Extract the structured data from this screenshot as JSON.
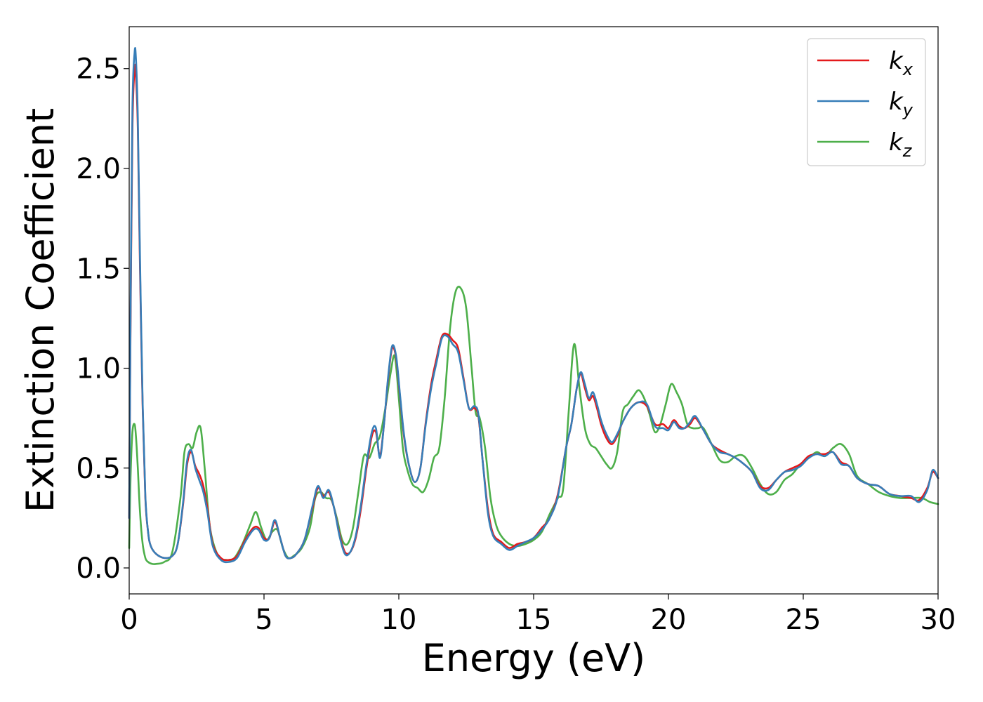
{
  "chart_data": {
    "type": "line",
    "title": "",
    "xlabel": "Energy (eV)",
    "ylabel": "Extinction Coefficient",
    "xlim": [
      0,
      30
    ],
    "ylim": [
      -0.13,
      2.71
    ],
    "xticks": [
      0,
      5,
      10,
      15,
      20,
      25,
      30
    ],
    "yticks": [
      0.0,
      0.5,
      1.0,
      1.5,
      2.0,
      2.5
    ],
    "xtick_labels": [
      "0",
      "5",
      "10",
      "15",
      "20",
      "25",
      "30"
    ],
    "ytick_labels": [
      "0.0",
      "0.5",
      "1.0",
      "1.5",
      "2.0",
      "2.5"
    ],
    "grid": false,
    "legend_position": "top-right",
    "series": [
      {
        "name": "k_x",
        "legend_base": "k",
        "legend_sub": "x",
        "color": "#e41a1c",
        "x": [
          0,
          0.05,
          0.12,
          0.2,
          0.25,
          0.32,
          0.4,
          0.5,
          0.6,
          0.7,
          0.8,
          1.0,
          1.3,
          1.6,
          1.8,
          2.0,
          2.15,
          2.3,
          2.45,
          2.6,
          2.75,
          2.9,
          3.1,
          3.4,
          3.7,
          4.0,
          4.3,
          4.6,
          4.8,
          5.0,
          5.2,
          5.4,
          5.6,
          5.8,
          6.0,
          6.2,
          6.5,
          6.8,
          7.0,
          7.2,
          7.4,
          7.6,
          7.8,
          8.0,
          8.2,
          8.4,
          8.6,
          8.8,
          9.0,
          9.15,
          9.3,
          9.45,
          9.6,
          9.75,
          9.9,
          10.05,
          10.2,
          10.4,
          10.6,
          10.8,
          11.0,
          11.2,
          11.4,
          11.6,
          11.8,
          12.0,
          12.2,
          12.4,
          12.6,
          12.8,
          12.95,
          13.1,
          13.3,
          13.5,
          13.8,
          14.1,
          14.4,
          14.7,
          15.0,
          15.3,
          15.6,
          15.9,
          16.2,
          16.4,
          16.6,
          16.75,
          16.9,
          17.05,
          17.2,
          17.35,
          17.5,
          17.7,
          17.9,
          18.1,
          18.3,
          18.6,
          18.9,
          19.2,
          19.5,
          19.8,
          20.0,
          20.2,
          20.4,
          20.6,
          20.8,
          21.0,
          21.3,
          21.6,
          21.9,
          22.2,
          22.5,
          22.8,
          23.1,
          23.4,
          23.7,
          24.0,
          24.3,
          24.6,
          24.9,
          25.2,
          25.5,
          25.8,
          26.1,
          26.4,
          26.7,
          27.0,
          27.4,
          27.8,
          28.2,
          28.6,
          29.0,
          29.3,
          29.6,
          29.8,
          30.0
        ],
        "y": [
          0.25,
          1.2,
          2.2,
          2.5,
          2.46,
          2.2,
          1.5,
          0.8,
          0.35,
          0.18,
          0.11,
          0.07,
          0.05,
          0.06,
          0.12,
          0.32,
          0.52,
          0.58,
          0.51,
          0.47,
          0.41,
          0.3,
          0.12,
          0.05,
          0.04,
          0.06,
          0.14,
          0.2,
          0.2,
          0.15,
          0.15,
          0.23,
          0.15,
          0.06,
          0.05,
          0.07,
          0.14,
          0.3,
          0.4,
          0.36,
          0.38,
          0.3,
          0.17,
          0.08,
          0.08,
          0.15,
          0.3,
          0.5,
          0.66,
          0.68,
          0.56,
          0.72,
          0.94,
          1.1,
          1.05,
          0.85,
          0.65,
          0.5,
          0.43,
          0.5,
          0.73,
          0.92,
          1.05,
          1.16,
          1.17,
          1.14,
          1.1,
          0.95,
          0.8,
          0.8,
          0.76,
          0.55,
          0.3,
          0.17,
          0.13,
          0.1,
          0.12,
          0.13,
          0.15,
          0.2,
          0.25,
          0.37,
          0.6,
          0.72,
          0.9,
          0.97,
          0.9,
          0.84,
          0.86,
          0.8,
          0.72,
          0.65,
          0.62,
          0.66,
          0.73,
          0.8,
          0.83,
          0.81,
          0.72,
          0.72,
          0.7,
          0.74,
          0.71,
          0.7,
          0.72,
          0.75,
          0.69,
          0.62,
          0.59,
          0.57,
          0.55,
          0.52,
          0.48,
          0.41,
          0.4,
          0.44,
          0.48,
          0.5,
          0.52,
          0.56,
          0.57,
          0.57,
          0.58,
          0.53,
          0.51,
          0.45,
          0.42,
          0.41,
          0.37,
          0.36,
          0.35,
          0.34,
          0.4,
          0.48,
          0.45
        ]
      },
      {
        "name": "k_y",
        "legend_base": "k",
        "legend_sub": "y",
        "color": "#377eb8",
        "x": [
          0,
          0.05,
          0.12,
          0.2,
          0.25,
          0.32,
          0.4,
          0.5,
          0.6,
          0.7,
          0.8,
          1.0,
          1.3,
          1.6,
          1.8,
          2.0,
          2.15,
          2.3,
          2.45,
          2.6,
          2.75,
          2.9,
          3.1,
          3.4,
          3.7,
          4.0,
          4.3,
          4.6,
          4.8,
          5.0,
          5.2,
          5.4,
          5.6,
          5.8,
          6.0,
          6.2,
          6.5,
          6.8,
          7.0,
          7.2,
          7.4,
          7.6,
          7.8,
          8.0,
          8.2,
          8.4,
          8.6,
          8.8,
          9.0,
          9.15,
          9.3,
          9.45,
          9.6,
          9.75,
          9.9,
          10.05,
          10.2,
          10.4,
          10.6,
          10.8,
          11.0,
          11.2,
          11.4,
          11.6,
          11.8,
          12.0,
          12.2,
          12.4,
          12.6,
          12.8,
          12.95,
          13.1,
          13.3,
          13.5,
          13.8,
          14.1,
          14.4,
          14.7,
          15.0,
          15.3,
          15.6,
          15.9,
          16.2,
          16.4,
          16.6,
          16.75,
          16.9,
          17.05,
          17.2,
          17.35,
          17.5,
          17.7,
          17.9,
          18.1,
          18.3,
          18.6,
          18.9,
          19.2,
          19.5,
          19.8,
          20.0,
          20.2,
          20.4,
          20.6,
          20.8,
          21.0,
          21.3,
          21.6,
          21.9,
          22.2,
          22.5,
          22.8,
          23.1,
          23.4,
          23.7,
          24.0,
          24.3,
          24.6,
          24.9,
          25.2,
          25.5,
          25.8,
          26.1,
          26.4,
          26.7,
          27.0,
          27.4,
          27.8,
          28.2,
          28.6,
          29.0,
          29.3,
          29.6,
          29.8,
          30.0
        ],
        "y": [
          0.25,
          1.25,
          2.3,
          2.58,
          2.55,
          2.25,
          1.55,
          0.82,
          0.36,
          0.18,
          0.11,
          0.07,
          0.05,
          0.06,
          0.12,
          0.33,
          0.54,
          0.59,
          0.5,
          0.44,
          0.38,
          0.28,
          0.11,
          0.04,
          0.03,
          0.05,
          0.13,
          0.19,
          0.19,
          0.14,
          0.15,
          0.24,
          0.15,
          0.06,
          0.05,
          0.07,
          0.14,
          0.31,
          0.41,
          0.35,
          0.39,
          0.3,
          0.16,
          0.07,
          0.08,
          0.16,
          0.32,
          0.52,
          0.68,
          0.7,
          0.55,
          0.72,
          0.95,
          1.11,
          1.06,
          0.86,
          0.66,
          0.5,
          0.43,
          0.5,
          0.72,
          0.9,
          1.03,
          1.15,
          1.16,
          1.12,
          1.08,
          0.94,
          0.8,
          0.81,
          0.77,
          0.55,
          0.28,
          0.16,
          0.12,
          0.09,
          0.11,
          0.13,
          0.15,
          0.19,
          0.25,
          0.36,
          0.6,
          0.72,
          0.9,
          0.98,
          0.92,
          0.85,
          0.88,
          0.82,
          0.74,
          0.67,
          0.63,
          0.67,
          0.73,
          0.8,
          0.83,
          0.82,
          0.71,
          0.7,
          0.69,
          0.73,
          0.7,
          0.7,
          0.73,
          0.76,
          0.69,
          0.62,
          0.58,
          0.57,
          0.55,
          0.52,
          0.48,
          0.4,
          0.39,
          0.44,
          0.48,
          0.49,
          0.51,
          0.55,
          0.57,
          0.56,
          0.58,
          0.52,
          0.51,
          0.45,
          0.42,
          0.41,
          0.37,
          0.36,
          0.36,
          0.33,
          0.39,
          0.49,
          0.45
        ]
      },
      {
        "name": "k_z",
        "legend_base": "k",
        "legend_sub": "z",
        "color": "#4daf4a",
        "x": [
          0,
          0.05,
          0.12,
          0.2,
          0.25,
          0.32,
          0.4,
          0.5,
          0.6,
          0.7,
          0.85,
          1.0,
          1.3,
          1.6,
          1.9,
          2.05,
          2.2,
          2.35,
          2.5,
          2.65,
          2.8,
          3.0,
          3.3,
          3.6,
          3.9,
          4.2,
          4.5,
          4.7,
          4.9,
          5.1,
          5.3,
          5.5,
          5.7,
          5.9,
          6.1,
          6.4,
          6.7,
          6.9,
          7.1,
          7.3,
          7.5,
          7.7,
          7.9,
          8.1,
          8.3,
          8.5,
          8.7,
          8.9,
          9.1,
          9.3,
          9.5,
          9.7,
          9.85,
          10.0,
          10.15,
          10.3,
          10.5,
          10.7,
          10.9,
          11.1,
          11.3,
          11.5,
          11.7,
          11.9,
          12.1,
          12.3,
          12.5,
          12.7,
          12.85,
          13.0,
          13.2,
          13.4,
          13.6,
          13.8,
          14.1,
          14.4,
          14.7,
          15.0,
          15.3,
          15.6,
          15.9,
          16.1,
          16.3,
          16.5,
          16.7,
          16.9,
          17.1,
          17.3,
          17.5,
          17.7,
          17.9,
          18.1,
          18.3,
          18.5,
          18.7,
          18.9,
          19.1,
          19.3,
          19.5,
          19.7,
          19.9,
          20.1,
          20.3,
          20.5,
          20.7,
          20.9,
          21.1,
          21.3,
          21.6,
          21.9,
          22.2,
          22.5,
          22.8,
          23.1,
          23.4,
          23.7,
          24.0,
          24.3,
          24.6,
          24.9,
          25.2,
          25.5,
          25.8,
          26.1,
          26.4,
          26.7,
          27.0,
          27.4,
          27.8,
          28.2,
          28.6,
          29.0,
          29.4,
          29.7,
          30.0
        ],
        "y": [
          0.1,
          0.45,
          0.68,
          0.72,
          0.66,
          0.5,
          0.28,
          0.12,
          0.05,
          0.03,
          0.02,
          0.02,
          0.03,
          0.08,
          0.35,
          0.58,
          0.62,
          0.6,
          0.68,
          0.7,
          0.5,
          0.2,
          0.06,
          0.04,
          0.05,
          0.12,
          0.22,
          0.28,
          0.2,
          0.14,
          0.18,
          0.19,
          0.1,
          0.05,
          0.06,
          0.1,
          0.2,
          0.35,
          0.38,
          0.35,
          0.34,
          0.25,
          0.14,
          0.12,
          0.2,
          0.38,
          0.56,
          0.55,
          0.62,
          0.66,
          0.8,
          0.98,
          1.06,
          0.85,
          0.6,
          0.5,
          0.42,
          0.4,
          0.38,
          0.44,
          0.55,
          0.6,
          0.85,
          1.2,
          1.38,
          1.4,
          1.3,
          1.0,
          0.78,
          0.75,
          0.6,
          0.35,
          0.22,
          0.16,
          0.12,
          0.11,
          0.12,
          0.14,
          0.18,
          0.27,
          0.35,
          0.4,
          0.78,
          1.12,
          0.9,
          0.7,
          0.62,
          0.6,
          0.56,
          0.52,
          0.5,
          0.58,
          0.78,
          0.82,
          0.86,
          0.89,
          0.85,
          0.77,
          0.68,
          0.72,
          0.82,
          0.92,
          0.88,
          0.82,
          0.72,
          0.7,
          0.7,
          0.7,
          0.62,
          0.54,
          0.53,
          0.56,
          0.56,
          0.5,
          0.42,
          0.37,
          0.38,
          0.44,
          0.47,
          0.52,
          0.55,
          0.58,
          0.56,
          0.6,
          0.62,
          0.57,
          0.46,
          0.42,
          0.38,
          0.36,
          0.35,
          0.35,
          0.35,
          0.33,
          0.32
        ]
      }
    ]
  }
}
